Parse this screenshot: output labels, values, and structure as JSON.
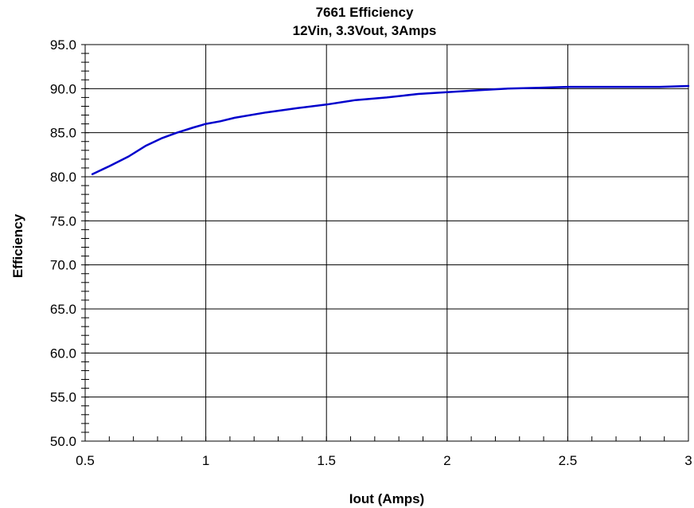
{
  "chart_data": {
    "type": "line",
    "title": "7661 Efficiency",
    "subtitle": "12Vin, 3.3Vout, 3Amps",
    "xlabel": "Iout (Amps)",
    "ylabel": "Efficiency",
    "xlim": [
      0.5,
      3
    ],
    "ylim": [
      50,
      95
    ],
    "xticks": [
      "0.5",
      "1",
      "1.5",
      "2",
      "2.5",
      "3"
    ],
    "yticks": [
      "50.0",
      "55.0",
      "60.0",
      "65.0",
      "70.0",
      "75.0",
      "80.0",
      "85.0",
      "90.0",
      "95.0"
    ],
    "grid": true,
    "line_color": "#0000cc",
    "series": [
      {
        "x": [
          0.53,
          0.6,
          0.68,
          0.75,
          0.82,
          0.88,
          0.95,
          1.0,
          1.06,
          1.12,
          1.25,
          1.38,
          1.5,
          1.62,
          1.75,
          1.88,
          2.0,
          2.12,
          2.25,
          2.38,
          2.5,
          2.62,
          2.75,
          2.88,
          3.0
        ],
        "y": [
          80.3,
          81.2,
          82.3,
          83.5,
          84.4,
          85.0,
          85.6,
          86.0,
          86.3,
          86.7,
          87.3,
          87.8,
          88.2,
          88.7,
          89.0,
          89.4,
          89.6,
          89.8,
          90.0,
          90.1,
          90.2,
          90.2,
          90.2,
          90.2,
          90.3
        ]
      }
    ]
  }
}
